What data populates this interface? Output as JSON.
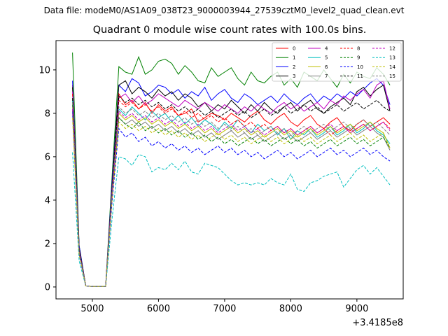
{
  "suptitle": "Data file: modeM0/AS1A09_038T23_9000003944_27539cztM0_level2_quad_clean.evt",
  "chart_data": {
    "type": "line",
    "title": "Quadrant 0 module wise count rates with 100.0s bins.",
    "xlabel": "",
    "ylabel": "",
    "x_offset_label": "+3.4185e8",
    "xlim": [
      4450,
      9700
    ],
    "ylim": [
      -0.55,
      11.35
    ],
    "xticks": [
      5000,
      6000,
      7000,
      8000,
      9000
    ],
    "yticks": [
      0,
      2,
      4,
      6,
      8,
      10
    ],
    "legend_loc": "upper right",
    "grid": false,
    "x": [
      4700,
      4800,
      4900,
      5000,
      5100,
      5200,
      5300,
      5400,
      5500,
      5600,
      5700,
      5800,
      5900,
      6000,
      6100,
      6200,
      6300,
      6400,
      6500,
      6600,
      6700,
      6800,
      6900,
      7000,
      7100,
      7200,
      7300,
      7400,
      7500,
      7600,
      7700,
      7800,
      7900,
      8000,
      8100,
      8200,
      8300,
      8400,
      8500,
      8600,
      8700,
      8800,
      8900,
      9000,
      9100,
      9200,
      9300,
      9400,
      9500
    ],
    "series": [
      {
        "name": "0",
        "color": "#ff0000",
        "dash": false,
        "values": [
          9.3,
          1.8,
          0.05,
          0.02,
          0.02,
          0.02,
          4.5,
          8.9,
          8.4,
          8.6,
          8.2,
          8.5,
          8.0,
          8.4,
          8.1,
          8.3,
          7.9,
          8.0,
          8.2,
          7.6,
          7.8,
          8.0,
          7.9,
          7.7,
          8.0,
          7.8,
          7.6,
          7.9,
          8.1,
          7.7,
          7.5,
          7.8,
          8.0,
          7.6,
          7.4,
          7.7,
          7.9,
          7.5,
          7.3,
          7.6,
          7.8,
          7.4,
          7.2,
          7.5,
          7.7,
          7.4,
          7.6,
          7.8,
          7.5
        ]
      },
      {
        "name": "1",
        "color": "#008000",
        "dash": false,
        "values": [
          10.8,
          1.9,
          0.05,
          0.02,
          0.02,
          0.02,
          5.2,
          10.15,
          9.9,
          9.8,
          10.6,
          9.8,
          10.0,
          10.4,
          10.5,
          10.3,
          9.8,
          10.2,
          9.9,
          9.5,
          9.4,
          10.1,
          9.7,
          9.9,
          10.1,
          9.6,
          9.3,
          9.9,
          9.5,
          9.4,
          9.7,
          9.9,
          9.3,
          9.6,
          9.2,
          9.9,
          9.7,
          9.5,
          10.0,
          9.6,
          9.2,
          9.8,
          9.4,
          9.9,
          9.7,
          9.6,
          10.1,
          9.8,
          9.3
        ]
      },
      {
        "name": "2",
        "color": "#0000ff",
        "dash": false,
        "values": [
          9.5,
          1.9,
          0.05,
          0.02,
          0.02,
          0.02,
          4.9,
          9.3,
          9.0,
          9.6,
          9.4,
          8.8,
          9.0,
          9.3,
          9.2,
          8.9,
          9.1,
          8.7,
          9.0,
          8.8,
          9.2,
          8.6,
          8.9,
          9.1,
          8.7,
          8.5,
          8.9,
          8.7,
          8.4,
          8.6,
          8.8,
          8.5,
          8.9,
          8.6,
          8.4,
          8.7,
          8.9,
          8.5,
          8.8,
          8.6,
          8.9,
          8.7,
          9.0,
          8.8,
          9.1,
          9.4,
          9.6,
          9.3,
          8.4
        ]
      },
      {
        "name": "3",
        "color": "#000000",
        "dash": false,
        "values": [
          9.2,
          1.8,
          0.05,
          0.02,
          0.02,
          0.02,
          4.7,
          9.3,
          9.5,
          8.9,
          9.2,
          9.0,
          8.7,
          9.1,
          8.8,
          9.0,
          8.6,
          8.9,
          8.7,
          8.3,
          8.5,
          8.1,
          8.4,
          8.2,
          8.6,
          8.3,
          8.0,
          8.4,
          8.1,
          8.5,
          8.2,
          8.0,
          8.3,
          8.5,
          8.1,
          8.4,
          8.6,
          8.2,
          8.0,
          8.3,
          8.5,
          8.7,
          8.4,
          9.0,
          9.2,
          8.8,
          9.1,
          9.3,
          8.1
        ]
      },
      {
        "name": "4",
        "color": "#bf00bf",
        "dash": false,
        "values": [
          9.0,
          1.7,
          0.05,
          0.02,
          0.02,
          0.02,
          4.6,
          8.7,
          8.9,
          8.5,
          8.8,
          8.4,
          8.6,
          8.9,
          8.7,
          8.5,
          8.3,
          8.6,
          8.4,
          8.2,
          8.5,
          8.3,
          8.1,
          8.4,
          8.2,
          8.0,
          8.3,
          8.1,
          8.4,
          8.2,
          8.0,
          8.3,
          8.5,
          8.2,
          8.4,
          8.1,
          8.3,
          8.5,
          8.2,
          8.6,
          8.4,
          8.8,
          8.6,
          8.9,
          9.1,
          8.7,
          9.3,
          9.5,
          8.2
        ]
      },
      {
        "name": "5",
        "color": "#00bfbf",
        "dash": false,
        "values": [
          8.6,
          1.6,
          0.05,
          0.02,
          0.02,
          0.02,
          4.4,
          8.2,
          7.9,
          8.3,
          8.0,
          7.7,
          8.1,
          7.8,
          8.0,
          7.6,
          7.9,
          7.5,
          7.8,
          7.4,
          7.7,
          7.5,
          7.2,
          7.6,
          7.3,
          7.7,
          7.4,
          7.1,
          7.5,
          7.2,
          7.4,
          7.0,
          7.3,
          6.8,
          7.2,
          7.0,
          7.3,
          6.9,
          7.1,
          7.4,
          7.0,
          7.2,
          7.5,
          7.1,
          7.3,
          7.6,
          7.2,
          7.0,
          6.6
        ]
      },
      {
        "name": "6",
        "color": "#bfbf00",
        "dash": false,
        "values": [
          8.3,
          1.6,
          0.05,
          0.02,
          0.02,
          0.02,
          4.3,
          8.0,
          7.7,
          7.9,
          7.6,
          7.8,
          7.5,
          7.7,
          7.4,
          7.6,
          7.3,
          7.5,
          7.2,
          7.4,
          7.1,
          7.3,
          7.0,
          7.2,
          7.4,
          7.1,
          7.3,
          7.0,
          7.2,
          6.9,
          7.1,
          7.3,
          7.0,
          7.2,
          6.9,
          7.1,
          7.3,
          7.0,
          7.2,
          7.4,
          7.1,
          7.3,
          7.5,
          7.2,
          7.4,
          7.6,
          7.3,
          7.1,
          6.4
        ]
      },
      {
        "name": "7",
        "color": "#808080",
        "dash": false,
        "values": [
          8.0,
          1.5,
          0.05,
          0.02,
          0.02,
          0.02,
          4.2,
          7.8,
          7.5,
          7.7,
          7.4,
          7.6,
          7.3,
          7.5,
          7.2,
          7.4,
          7.1,
          7.3,
          7.0,
          7.2,
          6.9,
          7.1,
          6.8,
          7.0,
          7.2,
          6.9,
          7.1,
          6.8,
          7.0,
          6.7,
          6.9,
          7.1,
          6.8,
          7.0,
          6.7,
          6.9,
          7.1,
          6.8,
          7.0,
          7.2,
          6.9,
          7.1,
          7.3,
          7.0,
          7.2,
          7.4,
          7.1,
          6.9,
          6.3
        ]
      },
      {
        "name": "8",
        "color": "#ff0000",
        "dash": true,
        "values": [
          8.9,
          1.7,
          0.05,
          0.02,
          0.02,
          0.02,
          4.5,
          8.6,
          8.3,
          8.5,
          8.2,
          8.4,
          8.1,
          8.3,
          8.0,
          8.2,
          7.9,
          8.1,
          7.8,
          8.0,
          7.7,
          7.9,
          7.6,
          7.8,
          7.5,
          7.7,
          7.4,
          7.6,
          7.3,
          7.5,
          7.2,
          7.4,
          7.1,
          7.3,
          7.0,
          7.2,
          7.4,
          7.1,
          7.3,
          7.0,
          7.2,
          7.4,
          7.1,
          7.3,
          7.5,
          7.2,
          7.4,
          7.6,
          7.3
        ]
      },
      {
        "name": "9",
        "color": "#008000",
        "dash": true,
        "values": [
          8.4,
          1.6,
          0.05,
          0.02,
          0.02,
          0.02,
          4.3,
          7.8,
          7.5,
          7.3,
          7.6,
          7.2,
          7.4,
          7.1,
          7.3,
          7.0,
          7.2,
          6.9,
          7.1,
          6.8,
          7.0,
          6.7,
          6.9,
          6.6,
          6.8,
          6.5,
          6.7,
          6.9,
          6.6,
          6.8,
          6.5,
          6.7,
          6.9,
          6.6,
          6.8,
          6.5,
          6.7,
          6.4,
          6.6,
          6.8,
          6.5,
          6.7,
          6.9,
          6.6,
          6.8,
          6.5,
          6.7,
          6.9,
          6.4
        ]
      },
      {
        "name": "10",
        "color": "#0000ff",
        "dash": true,
        "values": [
          8.1,
          1.5,
          0.05,
          0.02,
          0.02,
          0.02,
          4.0,
          7.3,
          6.9,
          7.1,
          6.7,
          6.9,
          6.5,
          6.7,
          6.4,
          6.6,
          6.3,
          6.5,
          6.2,
          6.4,
          6.1,
          6.3,
          6.5,
          6.2,
          6.4,
          6.1,
          6.3,
          6.0,
          6.2,
          5.9,
          6.1,
          6.3,
          6.0,
          6.2,
          5.9,
          6.1,
          6.3,
          6.0,
          6.2,
          6.4,
          6.1,
          6.3,
          6.0,
          6.2,
          6.4,
          6.1,
          6.3,
          6.0,
          5.8
        ]
      },
      {
        "name": "11",
        "color": "#000000",
        "dash": true,
        "values": [
          8.7,
          1.7,
          0.05,
          0.02,
          0.02,
          0.02,
          4.6,
          8.8,
          8.5,
          8.7,
          8.4,
          8.6,
          8.3,
          8.5,
          8.2,
          8.4,
          8.1,
          8.3,
          8.0,
          8.2,
          7.9,
          8.1,
          7.8,
          8.0,
          8.2,
          7.9,
          8.1,
          7.8,
          8.0,
          8.2,
          7.9,
          8.1,
          8.3,
          8.0,
          8.2,
          8.4,
          8.1,
          8.3,
          8.0,
          8.2,
          8.4,
          8.1,
          8.3,
          8.5,
          8.2,
          8.4,
          8.6,
          8.3,
          8.1
        ]
      },
      {
        "name": "12",
        "color": "#bf00bf",
        "dash": true,
        "values": [
          8.2,
          1.6,
          0.05,
          0.02,
          0.02,
          0.02,
          4.4,
          8.1,
          7.8,
          8.0,
          7.7,
          7.9,
          7.6,
          7.8,
          7.5,
          7.7,
          7.4,
          7.6,
          7.3,
          7.5,
          7.2,
          7.4,
          7.1,
          7.3,
          7.5,
          7.2,
          7.4,
          7.1,
          7.3,
          7.0,
          7.2,
          7.4,
          7.1,
          7.3,
          7.0,
          7.2,
          7.4,
          7.1,
          7.3,
          7.5,
          7.2,
          7.4,
          7.1,
          7.3,
          7.5,
          7.2,
          7.4,
          7.6,
          7.2
        ]
      },
      {
        "name": "13",
        "color": "#00bfbf",
        "dash": true,
        "values": [
          6.2,
          1.2,
          0.05,
          0.02,
          0.02,
          0.02,
          3.2,
          6.0,
          5.9,
          5.6,
          6.1,
          6.0,
          5.3,
          5.5,
          5.4,
          5.7,
          5.4,
          5.8,
          5.3,
          5.2,
          5.7,
          5.6,
          5.5,
          5.2,
          4.9,
          4.7,
          4.8,
          4.7,
          4.8,
          4.7,
          5.0,
          4.8,
          4.7,
          5.2,
          4.5,
          4.4,
          4.8,
          4.9,
          5.1,
          5.2,
          5.3,
          4.6,
          5.0,
          5.4,
          5.6,
          5.2,
          5.5,
          5.1,
          4.7
        ]
      },
      {
        "name": "14",
        "color": "#bfbf00",
        "dash": true,
        "values": [
          7.8,
          1.5,
          0.05,
          0.02,
          0.02,
          0.02,
          4.1,
          7.6,
          7.3,
          7.5,
          7.2,
          7.4,
          7.1,
          7.3,
          7.0,
          7.2,
          6.9,
          7.1,
          6.8,
          7.0,
          6.7,
          6.9,
          7.1,
          6.8,
          7.0,
          6.7,
          6.9,
          6.6,
          6.8,
          7.0,
          6.7,
          6.9,
          6.6,
          6.8,
          7.0,
          6.7,
          6.9,
          6.6,
          6.8,
          7.0,
          6.7,
          6.9,
          7.1,
          6.8,
          7.0,
          6.7,
          6.9,
          7.1,
          6.4
        ]
      },
      {
        "name": "15",
        "color": "#808080",
        "dash": true,
        "values": [
          8.5,
          1.6,
          0.05,
          0.02,
          0.02,
          0.02,
          4.4,
          8.3,
          8.0,
          8.2,
          7.9,
          8.1,
          7.8,
          8.0,
          7.7,
          7.9,
          7.6,
          7.8,
          7.5,
          7.7,
          7.4,
          7.6,
          7.3,
          7.5,
          7.2,
          7.4,
          7.1,
          7.3,
          7.0,
          7.2,
          7.4,
          7.1,
          7.3,
          7.0,
          7.2,
          7.4,
          7.1,
          7.3,
          7.5,
          7.2,
          7.4,
          7.6,
          7.3,
          7.5,
          7.7,
          7.4,
          7.6,
          7.3,
          7.0
        ]
      }
    ]
  }
}
